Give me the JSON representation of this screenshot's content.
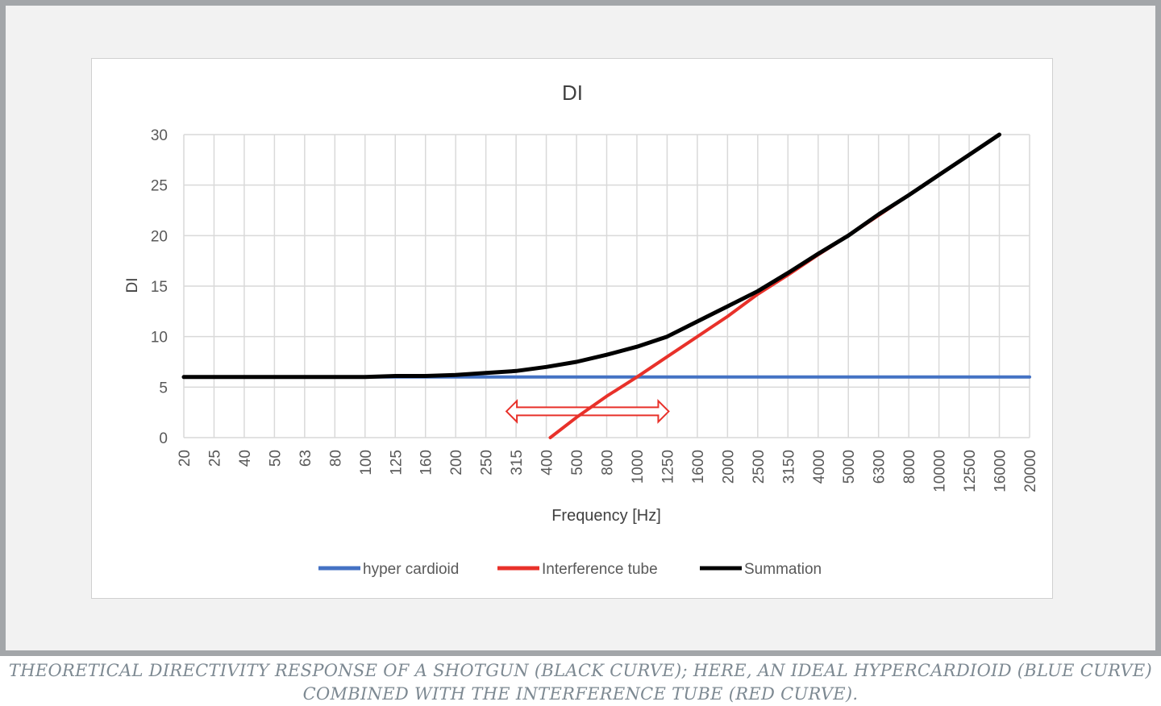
{
  "chart_data": {
    "type": "line",
    "title": "DI",
    "xlabel": "Frequency [Hz]",
    "ylabel": "DI",
    "categories": [
      "20",
      "25",
      "40",
      "50",
      "63",
      "80",
      "100",
      "125",
      "160",
      "200",
      "250",
      "315",
      "400",
      "500",
      "800",
      "1000",
      "1250",
      "1600",
      "2000",
      "2500",
      "3150",
      "4000",
      "5000",
      "6300",
      "8000",
      "10000",
      "12500",
      "16000",
      "20000"
    ],
    "ylim": [
      0,
      30
    ],
    "yticks": [
      "0",
      "5",
      "10",
      "15",
      "20",
      "25",
      "30"
    ],
    "grid": true,
    "legend_position": "bottom",
    "series": [
      {
        "name": "hyper cardioid",
        "color": "#4472c4",
        "values": [
          6,
          6,
          6,
          6,
          6,
          6,
          6,
          6,
          6,
          6,
          6,
          6,
          6,
          6,
          6,
          6,
          6,
          6,
          6,
          6,
          6,
          6,
          6,
          6,
          6,
          6,
          6,
          6,
          6
        ]
      },
      {
        "name": "Interference tube",
        "color": "#e8312a",
        "values": [
          null,
          null,
          null,
          null,
          null,
          null,
          null,
          null,
          null,
          null,
          null,
          null,
          -0.3,
          2,
          4.1,
          6,
          8,
          10,
          12,
          14.2,
          16.1,
          18.1,
          20,
          22,
          24,
          26,
          28,
          30,
          null
        ]
      },
      {
        "name": "Summation",
        "color": "#000000",
        "values": [
          6,
          6,
          6,
          6,
          6,
          6,
          6,
          6.1,
          6.1,
          6.2,
          6.4,
          6.6,
          7,
          7.5,
          8.2,
          9,
          10,
          11.5,
          13,
          14.5,
          16.3,
          18.2,
          20,
          22.1,
          24,
          26,
          28,
          30,
          null
        ]
      }
    ],
    "annotations": [
      {
        "type": "double-arrow",
        "color": "#e8312a",
        "from_category": "315",
        "to_category": "1250",
        "y": 2.6
      }
    ]
  },
  "caption": {
    "line1": "THEORETICAL DIRECTIVITY RESPONSE OF A SHOTGUN (BLACK CURVE); HERE, AN IDEAL HYPERCARDIOID (BLUE CURVE)",
    "line2": "COMBINED WITH THE INTERFERENCE TUBE (RED CURVE)."
  }
}
